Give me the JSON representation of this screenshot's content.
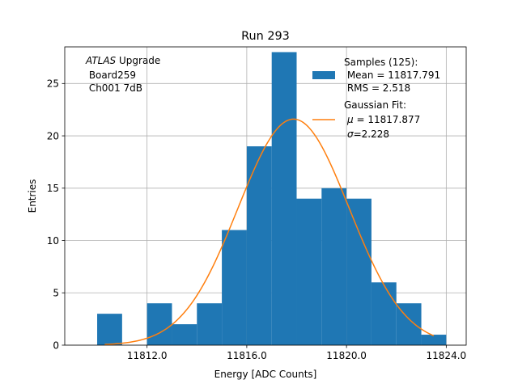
{
  "chart_data": {
    "type": "bar",
    "title": "Run 293",
    "xlabel": "Energy [ADC Counts]",
    "ylabel": "Entries",
    "xlim": [
      11808.7,
      11824.8
    ],
    "ylim": [
      0,
      28.5
    ],
    "xticks": [
      11812.0,
      11816.0,
      11820.0,
      11824.0
    ],
    "xtick_labels": [
      "11812.0",
      "11816.0",
      "11820.0",
      "11824.0"
    ],
    "yticks": [
      0,
      5,
      10,
      15,
      20,
      25
    ],
    "ytick_labels": [
      "0",
      "5",
      "10",
      "15",
      "20",
      "25"
    ],
    "grid": true,
    "histogram": {
      "bin_edges": [
        11810,
        11811,
        11812,
        11813,
        11814,
        11815,
        11816,
        11817,
        11818,
        11819,
        11820,
        11821,
        11822,
        11823,
        11824
      ],
      "counts": [
        3,
        0,
        4,
        2,
        4,
        11,
        19,
        28,
        14,
        15,
        14,
        6,
        4,
        1
      ],
      "color": "#1f77b4"
    },
    "gaussian_fit": {
      "mu": 11817.877,
      "sigma": 2.228,
      "amplitude": 21.6,
      "x_range": [
        11810.3,
        11823.5
      ],
      "color": "#ff7f0e"
    },
    "annotation": {
      "italic_part": "ATLAS",
      "normal_part": " Upgrade",
      "line2": " Board259",
      "line3": " Ch001 7dB"
    },
    "legend": {
      "location": "top-right",
      "samples": {
        "line1": "Samples (125):",
        "line2": " Mean = 11817.791",
        "line3": " RMS = 2.518"
      },
      "fit": {
        "line1": "Gaussian Fit:",
        "line2_mu_symbol": "μ",
        "line2_value": " = 11817.877",
        "line3_sigma_symbol": "σ",
        "line3_value": "=2.228"
      }
    }
  }
}
